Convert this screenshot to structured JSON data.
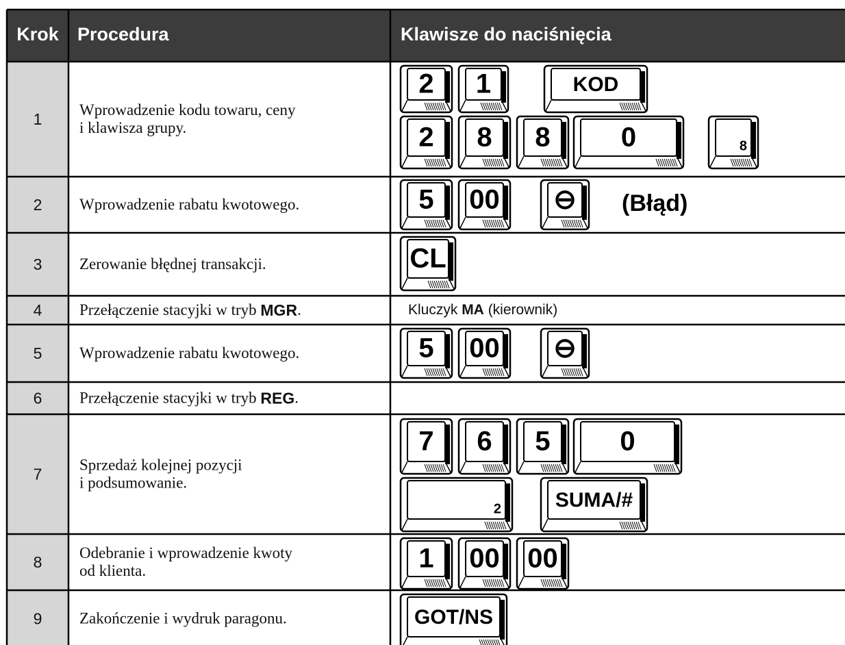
{
  "table": {
    "header": [
      "Krok",
      "Procedura",
      "Klawisze do naciśnięcia"
    ],
    "rows": [
      {
        "step": "1",
        "procedure": [
          [
            {
              "text": "Wprowadzenie kodu towaru, ceny"
            }
          ],
          [
            {
              "text": "i klawisza grupy."
            }
          ]
        ],
        "keys": [
          [
            "2",
            "1",
            "KOD"
          ],
          [
            "2",
            "8",
            "8",
            "0",
            "8"
          ]
        ]
      },
      {
        "step": "2",
        "procedure": [
          [
            {
              "text": "Wprowadzenie rabatu kwotowego."
            }
          ]
        ],
        "keys": [
          [
            "5",
            "00",
            "⊖"
          ]
        ],
        "note": "(Błąd)"
      },
      {
        "step": "3",
        "procedure": [
          [
            {
              "text": "Zerowanie błędnej transakcji."
            }
          ]
        ],
        "keys": [
          [
            "CL"
          ]
        ]
      },
      {
        "step": "4",
        "procedure": [
          [
            {
              "text": "Przełączenie stacyjki w tryb "
            },
            {
              "text": "MGR",
              "bold": true
            },
            {
              "text": "."
            }
          ]
        ],
        "text": [
          {
            "text": "Kluczyk "
          },
          {
            "text": "MA",
            "bold": true
          },
          {
            "text": " (kierownik)"
          }
        ]
      },
      {
        "step": "5",
        "procedure": [
          [
            {
              "text": "Wprowadzenie rabatu kwotowego."
            }
          ]
        ],
        "keys": [
          [
            "5",
            "00",
            "⊖"
          ]
        ]
      },
      {
        "step": "6",
        "procedure": [
          [
            {
              "text": "Przełączenie stacyjki w tryb "
            },
            {
              "text": "REG",
              "bold": true
            },
            {
              "text": "."
            }
          ]
        ]
      },
      {
        "step": "7",
        "procedure": [
          [
            {
              "text": "Sprzedaż kolejnej pozycji"
            }
          ],
          [
            {
              "text": "i podsumowanie."
            }
          ]
        ],
        "keys": [
          [
            "7",
            "6",
            "5",
            "0"
          ],
          [
            "2",
            "SUMA/#"
          ]
        ]
      },
      {
        "step": "8",
        "procedure": [
          [
            {
              "text": "Odebranie i wprowadzenie kwoty"
            }
          ],
          [
            {
              "text": "od klienta."
            }
          ]
        ],
        "keys": [
          [
            "1",
            "00",
            "00"
          ]
        ]
      },
      {
        "step": "9",
        "procedure": [
          [
            {
              "text": "Zakończenie i wydruk paragonu."
            }
          ]
        ],
        "keys": [
          [
            "GOT/NS"
          ]
        ]
      }
    ]
  }
}
